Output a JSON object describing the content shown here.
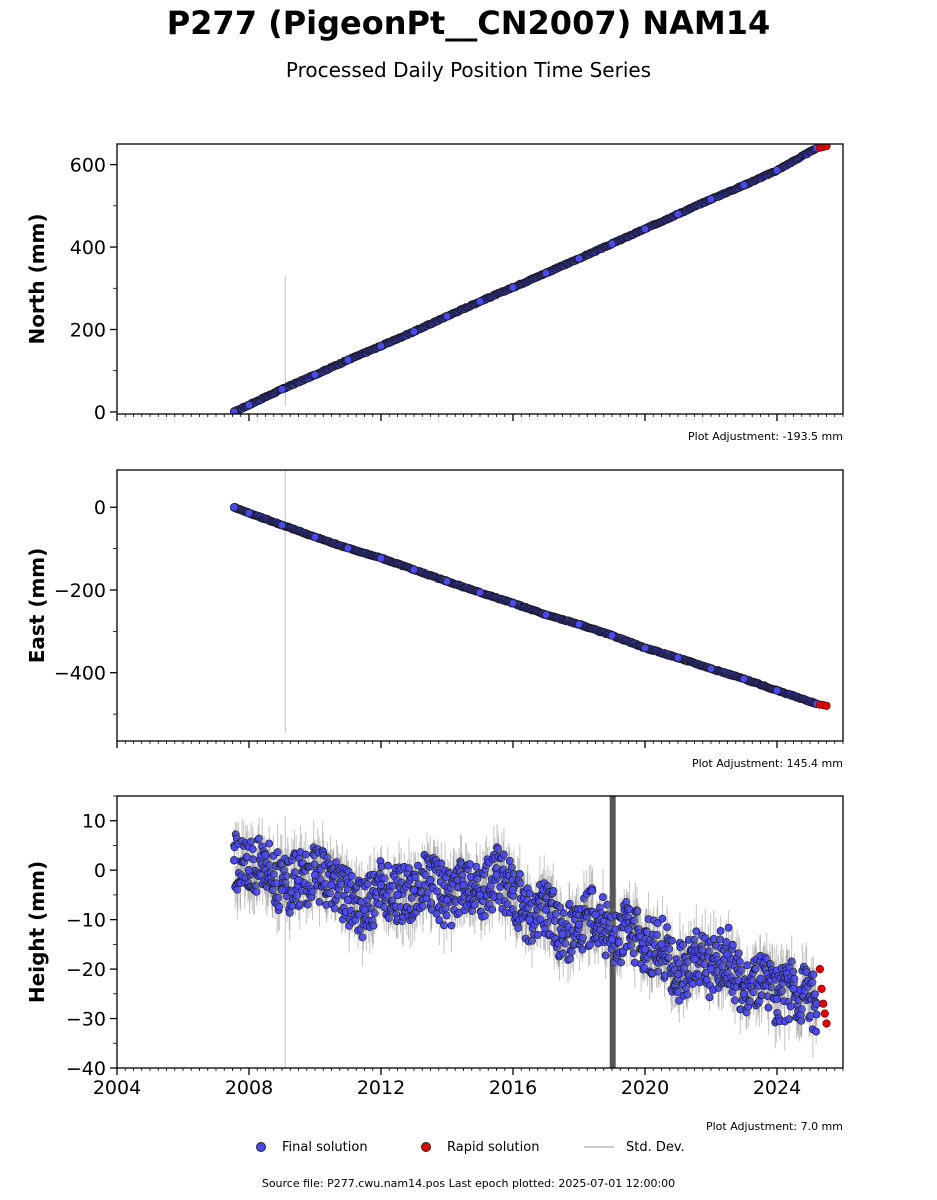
{
  "header": {
    "title": "P277 (PigeonPt__CN2007) NAM14",
    "subtitle": "Processed Daily Position Time Series"
  },
  "legend": {
    "final": "Final solution",
    "rapid": "Rapid solution",
    "stddev": "Std. Dev."
  },
  "footer": {
    "source": "Source file: P277.cwu.nam14.pos  Last epoch plotted: 2025-07-01 12:00:00"
  },
  "colors": {
    "final": "#4a4af0",
    "rapid": "#e00000",
    "stddev": "#bdbdbd",
    "marker_edge": "#1a1a2e",
    "gap_band": "#555555"
  },
  "chart_data": [
    {
      "type": "scatter",
      "ylabel": "North (mm)",
      "xlim": [
        2004,
        2026
      ],
      "ylim": [
        -5,
        650
      ],
      "yticks": [
        0,
        200,
        400,
        600
      ],
      "adjustment": "Plot Adjustment: -193.5 mm",
      "grid": false,
      "x_tick_labels": false,
      "series": [
        {
          "name": "Final solution",
          "x": [
            2007.55,
            2008,
            2009,
            2010,
            2011,
            2012,
            2013,
            2014,
            2015,
            2016,
            2017,
            2018,
            2019,
            2020,
            2021,
            2022,
            2023,
            2024,
            2025.2
          ],
          "y": [
            0,
            17,
            55,
            90,
            126,
            160,
            195,
            232,
            268,
            302,
            337,
            372,
            408,
            444,
            480,
            516,
            550,
            586,
            640
          ]
        },
        {
          "name": "Rapid solution",
          "x": [
            2025.3,
            2025.4,
            2025.5
          ],
          "y": [
            641,
            643,
            645
          ]
        }
      ]
    },
    {
      "type": "scatter",
      "ylabel": "East (mm)",
      "xlim": [
        2004,
        2026
      ],
      "ylim": [
        -565,
        90
      ],
      "yticks": [
        0,
        -200,
        -400
      ],
      "adjustment": "Plot Adjustment: 145.4 mm",
      "grid": false,
      "x_tick_labels": false,
      "series": [
        {
          "name": "Final solution",
          "x": [
            2007.55,
            2008,
            2009,
            2010,
            2011,
            2012,
            2013,
            2014,
            2015,
            2016,
            2017,
            2018,
            2019,
            2020,
            2021,
            2022,
            2023,
            2024,
            2025.2
          ],
          "y": [
            0,
            -14,
            -43,
            -72,
            -99,
            -123,
            -151,
            -179,
            -206,
            -232,
            -260,
            -283,
            -310,
            -340,
            -364,
            -390,
            -415,
            -443,
            -475
          ]
        },
        {
          "name": "Rapid solution",
          "x": [
            2025.3,
            2025.4,
            2025.5
          ],
          "y": [
            -477,
            -478,
            -480
          ]
        }
      ]
    },
    {
      "type": "scatter",
      "ylabel": "Height (mm)",
      "xlim": [
        2004,
        2026
      ],
      "ylim": [
        -40,
        15
      ],
      "yticks": [
        10,
        0,
        -10,
        -20,
        -30,
        -40
      ],
      "xticks": [
        2004,
        2008,
        2012,
        2016,
        2020,
        2024
      ],
      "adjustment": "Plot Adjustment: 7.0 mm",
      "grid": false,
      "x_tick_labels": true,
      "series": [
        {
          "name": "Final solution",
          "x": [
            2007.55,
            2008,
            2008.5,
            2009,
            2009.5,
            2010,
            2010.5,
            2011,
            2011.5,
            2012,
            2012.5,
            2013,
            2013.5,
            2014,
            2014.5,
            2015,
            2015.5,
            2016,
            2016.5,
            2017,
            2017.5,
            2018,
            2018.5,
            2019,
            2019.5,
            2020,
            2020.5,
            2021,
            2021.5,
            2022,
            2022.5,
            2023,
            2023.5,
            2024,
            2024.5,
            2025.2
          ],
          "y": [
            2,
            0,
            3,
            -4,
            -2,
            -1,
            -3,
            -6,
            -8,
            -3,
            -5,
            -4,
            -2,
            -6,
            -3,
            -5,
            -1,
            -4,
            -10,
            -8,
            -13,
            -11,
            -9,
            -14,
            -12,
            -16,
            -15,
            -21,
            -18,
            -20,
            -17,
            -25,
            -22,
            -26,
            -24,
            -27
          ]
        },
        {
          "name": "Rapid solution",
          "x": [
            2025.3,
            2025.35,
            2025.4,
            2025.45,
            2025.5
          ],
          "y": [
            -20,
            -24,
            -27,
            -29,
            -31
          ]
        }
      ]
    }
  ]
}
